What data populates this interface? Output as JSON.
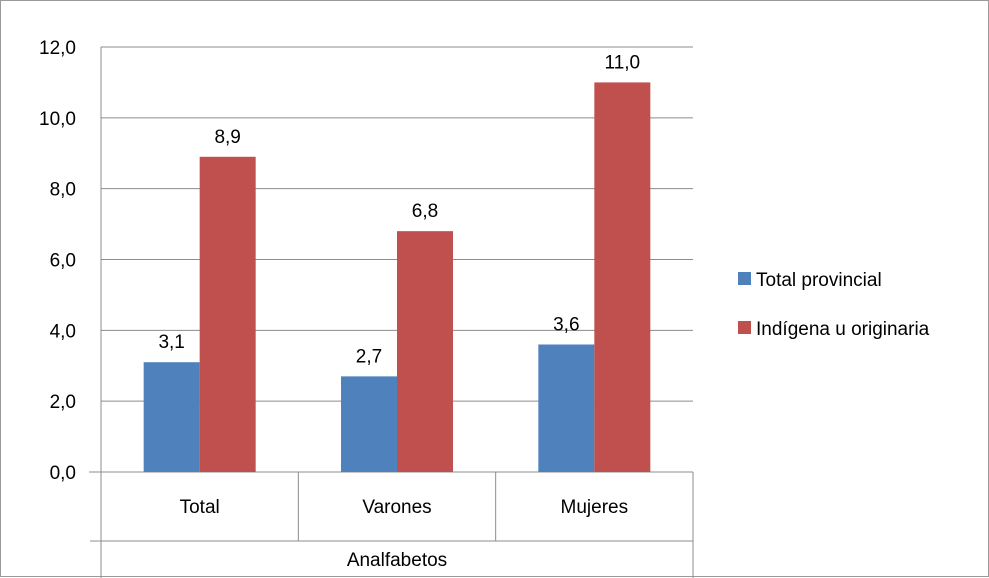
{
  "chart_data": {
    "type": "bar",
    "group_label": "Analfabetos",
    "categories": [
      "Total",
      "Varones",
      "Mujeres"
    ],
    "series": [
      {
        "name": "Total provincial",
        "color": "#4f81bd",
        "values": [
          3.1,
          2.7,
          3.6
        ],
        "labels": [
          "3,1",
          "2,7",
          "3,6"
        ]
      },
      {
        "name": "Indígena u originaria",
        "color": "#c0504d",
        "values": [
          8.9,
          6.8,
          11.0
        ],
        "labels": [
          "8,9",
          "6,8",
          "11,0"
        ]
      }
    ],
    "ylim": [
      0,
      12
    ],
    "yticks": [
      0,
      2,
      4,
      6,
      8,
      10,
      12
    ],
    "ytick_labels": [
      "0,0",
      "2,0",
      "4,0",
      "6,0",
      "8,0",
      "10,0",
      "12,0"
    ],
    "grid": true,
    "legend_position": "right"
  }
}
